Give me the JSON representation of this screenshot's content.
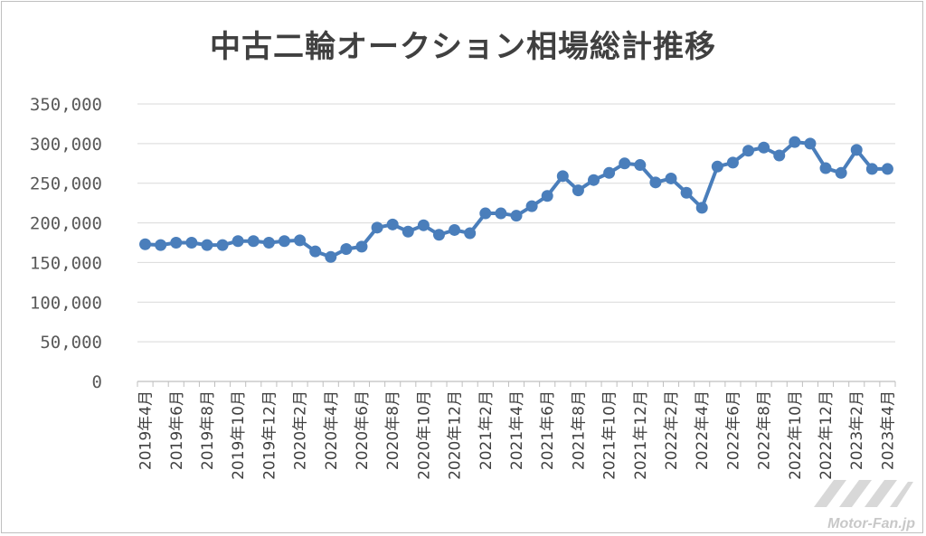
{
  "chart_data": {
    "type": "line",
    "title": "中古二輪オークション相場総計推移",
    "xlabel": "",
    "ylabel": "",
    "ylim": [
      0,
      350000
    ],
    "yticks": [
      0,
      50000,
      100000,
      150000,
      200000,
      250000,
      300000,
      350000
    ],
    "ytick_labels": [
      "0",
      "50,000",
      "100,000",
      "150,000",
      "200,000",
      "250,000",
      "300,000",
      "350,000"
    ],
    "grid": true,
    "legend": "none",
    "color": "#4a7ebb",
    "x": [
      "2019年4月",
      "2019年5月",
      "2019年6月",
      "2019年7月",
      "2019年8月",
      "2019年9月",
      "2019年10月",
      "2019年11月",
      "2019年12月",
      "2020年1月",
      "2020年2月",
      "2020年3月",
      "2020年4月",
      "2020年5月",
      "2020年6月",
      "2020年7月",
      "2020年8月",
      "2020年9月",
      "2020年10月",
      "2020年11月",
      "2020年12月",
      "2021年1月",
      "2021年2月",
      "2021年3月",
      "2021年4月",
      "2021年5月",
      "2021年6月",
      "2021年7月",
      "2021年8月",
      "2021年9月",
      "2021年10月",
      "2021年11月",
      "2021年12月",
      "2022年1月",
      "2022年2月",
      "2022年3月",
      "2022年4月",
      "2022年5月",
      "2022年6月",
      "2022年7月",
      "2022年8月",
      "2022年9月",
      "2022年10月",
      "2022年11月",
      "2022年12月",
      "2023年1月",
      "2023年2月",
      "2023年3月",
      "2023年4月"
    ],
    "x_tick_labels": [
      "2019年4月",
      "2019年6月",
      "2019年8月",
      "2019年10月",
      "2019年12月",
      "2020年2月",
      "2020年4月",
      "2020年6月",
      "2020年8月",
      "2020年10月",
      "2020年12月",
      "2021年2月",
      "2021年4月",
      "2021年6月",
      "2021年8月",
      "2021年10月",
      "2021年12月",
      "2022年2月",
      "2022年4月",
      "2022年6月",
      "2022年8月",
      "2022年10月",
      "2022年12月",
      "2023年2月",
      "2023年4月"
    ],
    "values": [
      173000,
      172000,
      175000,
      175000,
      172000,
      172000,
      177000,
      177000,
      175000,
      177000,
      178000,
      164000,
      157000,
      167000,
      170000,
      194000,
      198000,
      189000,
      197000,
      185000,
      191000,
      187000,
      212000,
      212000,
      209000,
      221000,
      234000,
      259000,
      241000,
      254000,
      263000,
      275000,
      273000,
      251000,
      256000,
      238000,
      219000,
      271000,
      276000,
      291000,
      295000,
      285000,
      302000,
      300000,
      269000,
      263000,
      292000,
      268000,
      268000
    ]
  },
  "watermark": "Motor-Fan.jp"
}
